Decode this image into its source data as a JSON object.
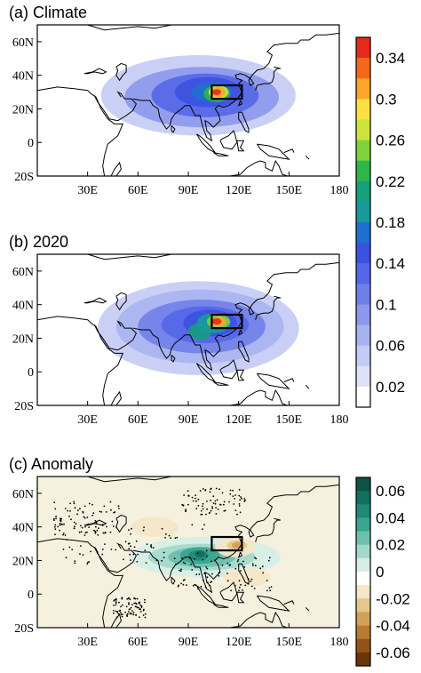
{
  "panels": [
    {
      "id": "a",
      "title": "(a) Climate",
      "lat_labels": [
        "60N",
        "40N",
        "20N",
        "0",
        "20S"
      ],
      "lon_labels": [
        "30E",
        "60E",
        "90E",
        "120E",
        "150E",
        "180"
      ]
    },
    {
      "id": "b",
      "title": "(b) 2020",
      "lat_labels": [
        "60N",
        "40N",
        "20N",
        "0",
        "20S"
      ],
      "lon_labels": [
        "30E",
        "60E",
        "90E",
        "120E",
        "150E",
        "180"
      ]
    },
    {
      "id": "c",
      "title": "(c) Anomaly",
      "lat_labels": [
        "60N",
        "40N",
        "20N",
        "0",
        "20S"
      ],
      "lon_labels": [
        "30E",
        "60E",
        "90E",
        "120E",
        "150E",
        "180"
      ]
    }
  ],
  "map_extent": {
    "lon": [
      0,
      180
    ],
    "lat": [
      -20,
      70
    ]
  },
  "study_box": {
    "lon": [
      104,
      122
    ],
    "lat": [
      26,
      34
    ]
  },
  "colorbar_main": {
    "labels": [
      "0.34",
      "0.3",
      "0.26",
      "0.22",
      "0.18",
      "0.14",
      "0.1",
      "0.06",
      "0.02"
    ],
    "colors": [
      "#e52a1c",
      "#f4681e",
      "#fca52c",
      "#fde142",
      "#cbe53d",
      "#80d23a",
      "#2fb54a",
      "#14a07a",
      "#169a9c",
      "#1f6fd0",
      "#3b52e0",
      "#5566e8",
      "#6f7fe9",
      "#8c98ec",
      "#a8b2f0",
      "#c4cbf4",
      "#dde2f8",
      "#ffffff"
    ]
  },
  "colorbar_anom": {
    "labels": [
      "0.06",
      "0.04",
      "0.02",
      "0",
      "-0.02",
      "-0.04",
      "-0.06"
    ],
    "colors": [
      "#0e5246",
      "#136e5d",
      "#1f8b76",
      "#3aa590",
      "#6cc0ad",
      "#a3d9cb",
      "#d6eee6",
      "#ffffff",
      "#f4e6c7",
      "#e5c68c",
      "#d2a05a",
      "#b97b32",
      "#945316",
      "#6a3508"
    ]
  }
}
